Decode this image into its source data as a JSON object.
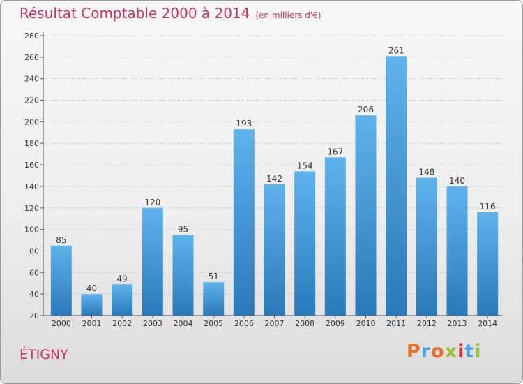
{
  "header": {
    "title": "Résultat Comptable 2000 à 2014",
    "unit": "(en milliers d'€)"
  },
  "footer": {
    "commune": "ÉTIGNY",
    "logo_text": "Proxiti",
    "logo_colors": [
      "#e8702a",
      "#4aa3df",
      "#e8702a",
      "#9bc23c",
      "#d9302c",
      "#4aa3df",
      "#9bc23c"
    ]
  },
  "colors": {
    "bar_top": "#5fb3ec",
    "bar_bottom": "#2a79b8",
    "text_accent": "#c8355e"
  },
  "chart_data": {
    "type": "bar",
    "title": "Résultat Comptable 2000 à 2014",
    "subtitle": "(en milliers d'€)",
    "xlabel": "",
    "ylabel": "",
    "categories": [
      "2000",
      "2001",
      "2002",
      "2003",
      "2004",
      "2005",
      "2006",
      "2007",
      "2008",
      "2009",
      "2010",
      "2011",
      "2012",
      "2013",
      "2014"
    ],
    "values": [
      85,
      40,
      49,
      120,
      95,
      51,
      193,
      142,
      154,
      167,
      206,
      261,
      148,
      140,
      116
    ],
    "ylim": [
      20,
      280
    ],
    "yticks": [
      20,
      40,
      60,
      80,
      100,
      120,
      140,
      160,
      180,
      200,
      220,
      240,
      260,
      280
    ],
    "grid": true
  }
}
